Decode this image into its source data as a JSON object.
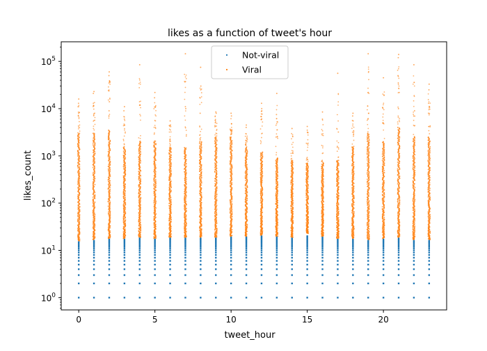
{
  "chart_data": {
    "type": "scatter",
    "title": "likes as a function of tweet's hour",
    "xlabel": "tweet_hour",
    "ylabel": "likes_count",
    "xscale": "linear",
    "yscale": "log",
    "xlim": [
      -1.15,
      24.15
    ],
    "ylim": [
      0.55,
      260000
    ],
    "xticks": [
      0,
      5,
      10,
      15,
      20
    ],
    "xtick_labels": [
      "0",
      "5",
      "10",
      "15",
      "20"
    ],
    "yticks": [
      1,
      10,
      100,
      1000,
      10000,
      100000
    ],
    "ytick_base": "10",
    "ytick_exponents": [
      "0",
      "1",
      "2",
      "3",
      "4",
      "5"
    ],
    "grid": false,
    "legend_position": "top-center",
    "series": [
      {
        "name": "Not-viral",
        "color": "#1f77b4",
        "hours": [
          0,
          1,
          2,
          3,
          4,
          5,
          6,
          7,
          8,
          9,
          10,
          11,
          12,
          13,
          14,
          15,
          16,
          17,
          18,
          19,
          20,
          21,
          22,
          23
        ],
        "values_per_hour": [
          1,
          2,
          3,
          4,
          5,
          6,
          7,
          8,
          9,
          10,
          11,
          12,
          13,
          14,
          15,
          16,
          17,
          18,
          19,
          20
        ],
        "max_per_hour": [
          15,
          16,
          17,
          17,
          18,
          17,
          18,
          18,
          18,
          18,
          19,
          19,
          20,
          19,
          18,
          22,
          19,
          17,
          17,
          16,
          17,
          18,
          16,
          16
        ]
      },
      {
        "name": "Viral",
        "color": "#ff7f0e",
        "hours": [
          0,
          1,
          2,
          3,
          4,
          5,
          6,
          7,
          8,
          9,
          10,
          11,
          12,
          13,
          14,
          15,
          16,
          17,
          18,
          19,
          20,
          21,
          22,
          23
        ],
        "min_per_hour": [
          16,
          17,
          18,
          18,
          19,
          18,
          19,
          19,
          19,
          19,
          20,
          20,
          21,
          20,
          19,
          23,
          20,
          18,
          18,
          17,
          18,
          19,
          17,
          17
        ],
        "dense_top_per_hour": [
          3000,
          3000,
          3500,
          1500,
          2000,
          2000,
          1500,
          1500,
          2000,
          2500,
          2500,
          1500,
          1200,
          900,
          800,
          700,
          700,
          800,
          1500,
          3000,
          2000,
          4000,
          2500,
          2500
        ],
        "max_per_hour": [
          16000,
          23000,
          60000,
          11000,
          85000,
          22000,
          5500,
          145000,
          75000,
          8500,
          8000,
          4500,
          13000,
          21000,
          3800,
          4200,
          8500,
          56000,
          8000,
          145000,
          45000,
          140000,
          85000,
          33000
        ],
        "outliers": [
          {
            "x": 0,
            "y": 13000
          },
          {
            "x": 0,
            "y": 7000
          },
          {
            "x": 1,
            "y": 21000
          },
          {
            "x": 1,
            "y": 13000
          },
          {
            "x": 1,
            "y": 8000
          },
          {
            "x": 2,
            "y": 50000
          },
          {
            "x": 2,
            "y": 14000
          },
          {
            "x": 2,
            "y": 9000
          },
          {
            "x": 3,
            "y": 9000
          },
          {
            "x": 3,
            "y": 6000
          },
          {
            "x": 4,
            "y": 12000
          },
          {
            "x": 5,
            "y": 17000
          },
          {
            "x": 5,
            "y": 11000
          },
          {
            "x": 6,
            "y": 4500
          },
          {
            "x": 7,
            "y": 11000
          },
          {
            "x": 7,
            "y": 10000
          },
          {
            "x": 8,
            "y": 30000
          },
          {
            "x": 8,
            "y": 25000
          },
          {
            "x": 8,
            "y": 8000
          },
          {
            "x": 9,
            "y": 8000
          },
          {
            "x": 10,
            "y": 7000
          },
          {
            "x": 10,
            "y": 3200
          },
          {
            "x": 11,
            "y": 4000
          },
          {
            "x": 12,
            "y": 10000
          },
          {
            "x": 12,
            "y": 9000
          },
          {
            "x": 13,
            "y": 7500
          },
          {
            "x": 15,
            "y": 3500
          },
          {
            "x": 16,
            "y": 6000
          },
          {
            "x": 17,
            "y": 3200
          },
          {
            "x": 18,
            "y": 7000
          },
          {
            "x": 18,
            "y": 5500
          },
          {
            "x": 19,
            "y": 8000
          },
          {
            "x": 19,
            "y": 6000
          },
          {
            "x": 20,
            "y": 5000
          },
          {
            "x": 21,
            "y": 120000
          },
          {
            "x": 21,
            "y": 50000
          },
          {
            "x": 21,
            "y": 35000
          },
          {
            "x": 21,
            "y": 22000
          },
          {
            "x": 21,
            "y": 10000
          },
          {
            "x": 22,
            "y": 9000
          },
          {
            "x": 22,
            "y": 7000
          },
          {
            "x": 23,
            "y": 25000
          },
          {
            "x": 23,
            "y": 13000
          },
          {
            "x": 23,
            "y": 8000
          }
        ]
      }
    ]
  }
}
